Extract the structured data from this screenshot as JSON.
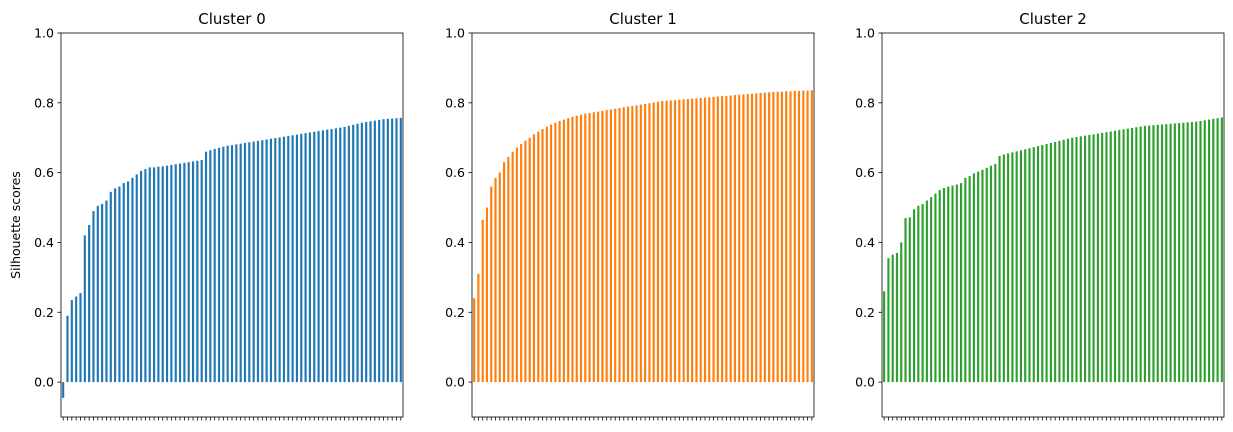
{
  "chart_data": [
    {
      "type": "bar",
      "title": "Cluster 0",
      "ylabel": "Silhouette scores",
      "xlabel": "",
      "color": "#1f77b4",
      "ylim": [
        -0.1,
        1.0
      ],
      "yticks": [
        "0.0",
        "0.2",
        "0.4",
        "0.6",
        "0.8",
        "1.0"
      ],
      "xticklabels": "none",
      "values": [
        -0.045,
        0.19,
        0.235,
        0.245,
        0.255,
        0.42,
        0.45,
        0.49,
        0.505,
        0.51,
        0.52,
        0.545,
        0.555,
        0.56,
        0.57,
        0.575,
        0.585,
        0.595,
        0.605,
        0.61,
        0.615,
        0.615,
        0.617,
        0.618,
        0.62,
        0.622,
        0.624,
        0.626,
        0.628,
        0.63,
        0.632,
        0.634,
        0.636,
        0.66,
        0.664,
        0.668,
        0.671,
        0.674,
        0.677,
        0.679,
        0.681,
        0.683,
        0.685,
        0.687,
        0.689,
        0.691,
        0.693,
        0.695,
        0.697,
        0.699,
        0.701,
        0.703,
        0.705,
        0.707,
        0.709,
        0.711,
        0.713,
        0.715,
        0.717,
        0.719,
        0.721,
        0.723,
        0.725,
        0.727,
        0.729,
        0.731,
        0.734,
        0.737,
        0.74,
        0.743,
        0.745,
        0.747,
        0.749,
        0.751,
        0.753,
        0.754,
        0.755,
        0.756,
        0.757
      ]
    },
    {
      "type": "bar",
      "title": "Cluster 1",
      "ylabel": "",
      "xlabel": "",
      "color": "#ff7f0e",
      "ylim": [
        -0.1,
        1.0
      ],
      "yticks": [
        "0.0",
        "0.2",
        "0.4",
        "0.6",
        "0.8",
        "1.0"
      ],
      "xticklabels": "none",
      "values": [
        0.24,
        0.31,
        0.465,
        0.5,
        0.56,
        0.585,
        0.6,
        0.63,
        0.645,
        0.66,
        0.672,
        0.682,
        0.692,
        0.7,
        0.71,
        0.718,
        0.725,
        0.732,
        0.738,
        0.743,
        0.748,
        0.752,
        0.756,
        0.76,
        0.763,
        0.766,
        0.769,
        0.771,
        0.773,
        0.775,
        0.777,
        0.779,
        0.781,
        0.783,
        0.785,
        0.787,
        0.789,
        0.791,
        0.793,
        0.795,
        0.797,
        0.799,
        0.801,
        0.803,
        0.805,
        0.806,
        0.807,
        0.808,
        0.809,
        0.81,
        0.811,
        0.812,
        0.813,
        0.814,
        0.815,
        0.816,
        0.817,
        0.818,
        0.819,
        0.82,
        0.821,
        0.822,
        0.823,
        0.824,
        0.825,
        0.826,
        0.827,
        0.828,
        0.829,
        0.83,
        0.831,
        0.832,
        0.832,
        0.833,
        0.833,
        0.834,
        0.834,
        0.835,
        0.835,
        0.836
      ]
    },
    {
      "type": "bar",
      "title": "Cluster 2",
      "ylabel": "",
      "xlabel": "",
      "color": "#2ca02c",
      "ylim": [
        -0.1,
        1.0
      ],
      "yticks": [
        "0.0",
        "0.2",
        "0.4",
        "0.6",
        "0.8",
        "1.0"
      ],
      "xticklabels": "none",
      "values": [
        0.26,
        0.355,
        0.365,
        0.37,
        0.4,
        0.47,
        0.472,
        0.495,
        0.505,
        0.51,
        0.52,
        0.53,
        0.54,
        0.55,
        0.556,
        0.56,
        0.563,
        0.566,
        0.57,
        0.585,
        0.59,
        0.598,
        0.603,
        0.608,
        0.614,
        0.62,
        0.625,
        0.648,
        0.652,
        0.655,
        0.658,
        0.661,
        0.664,
        0.667,
        0.67,
        0.673,
        0.676,
        0.679,
        0.682,
        0.685,
        0.688,
        0.691,
        0.694,
        0.697,
        0.7,
        0.702,
        0.704,
        0.706,
        0.708,
        0.71,
        0.712,
        0.714,
        0.716,
        0.718,
        0.72,
        0.722,
        0.724,
        0.726,
        0.728,
        0.73,
        0.732,
        0.734,
        0.735,
        0.736,
        0.737,
        0.738,
        0.739,
        0.74,
        0.741,
        0.742,
        0.743,
        0.744,
        0.745,
        0.746,
        0.748,
        0.75,
        0.752,
        0.754,
        0.756,
        0.758
      ]
    }
  ]
}
